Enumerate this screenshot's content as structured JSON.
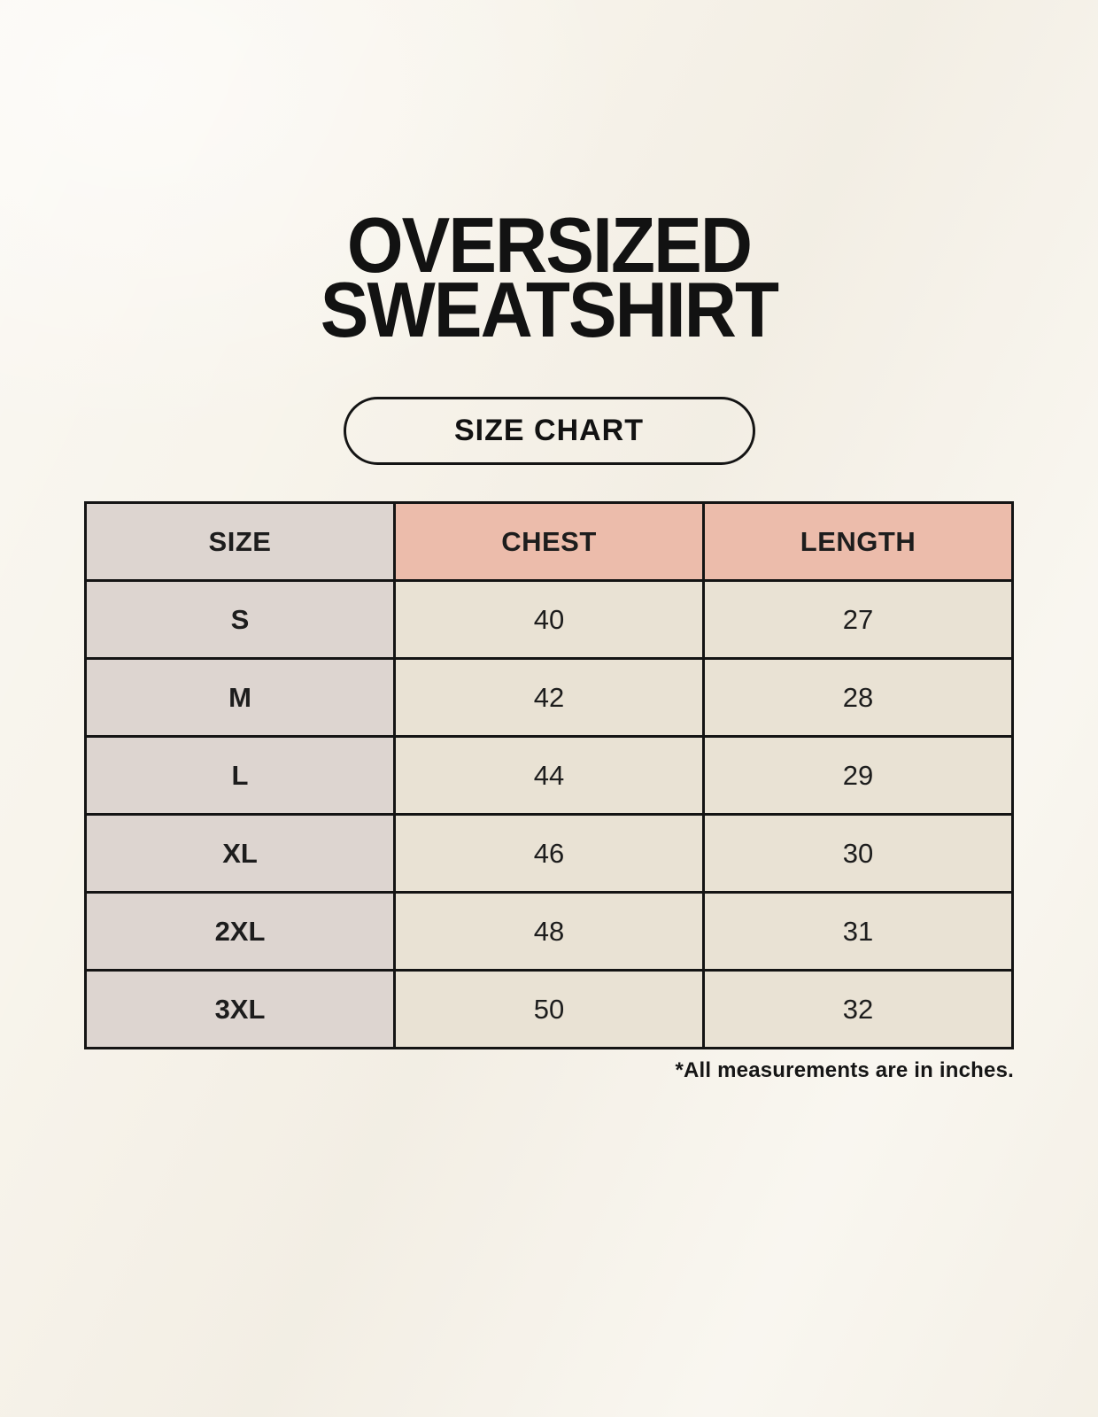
{
  "header": {
    "title_line1": "OVERSIZED",
    "title_line2": "SWEATSHIRT",
    "badge_label": "SIZE CHART"
  },
  "footnote": "*All measurements are in inches.",
  "colors": {
    "page_background": "#f7f3ea",
    "size_column_bg": "#ddd5d0",
    "measure_header_bg": "#ecbcab",
    "value_cell_bg": "#e9e2d4",
    "table_border": "#141414",
    "text": "#1d1d1d"
  },
  "chart_data": {
    "type": "table",
    "title": "OVERSIZED SWEATSHIRT SIZE CHART",
    "columns": [
      "SIZE",
      "CHEST",
      "LENGTH"
    ],
    "rows": [
      [
        "S",
        40,
        27
      ],
      [
        "M",
        42,
        28
      ],
      [
        "L",
        44,
        29
      ],
      [
        "XL",
        46,
        30
      ],
      [
        "2XL",
        48,
        31
      ],
      [
        "3XL",
        50,
        32
      ]
    ],
    "units": "inches",
    "note": "*All measurements are in inches."
  }
}
